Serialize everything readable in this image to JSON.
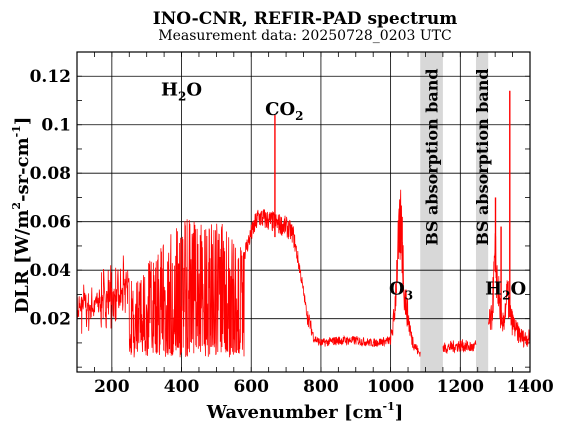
{
  "chart_data": {
    "type": "line",
    "title": "INO-CNR, REFIR-PAD spectrum",
    "subtitle": "Measurement data: 20250728_0203 UTC",
    "xlabel": {
      "main": "Wavenumber [cm",
      "sup": "-1",
      "tail": "]"
    },
    "ylabel": {
      "a": "DLR [W/m",
      "sup1": "2",
      "b": "-sr-cm",
      "sup2": "-1",
      "c": "]"
    },
    "xlim": [
      100,
      1400
    ],
    "ylim": [
      -0.002,
      0.13
    ],
    "x_ticks": [
      200,
      400,
      600,
      800,
      1000,
      1200,
      1400
    ],
    "y_ticks": [
      0.02,
      0.04,
      0.06,
      0.08,
      0.1,
      0.12
    ],
    "y_tick_labels": [
      "0.02",
      "0.04",
      "0.06",
      "0.08",
      "0.1",
      "0.12"
    ],
    "grid": true,
    "series": [
      {
        "color": "#ff0000",
        "points": [
          [
            100,
            0.022
          ],
          [
            120,
            0.026
          ],
          [
            140,
            0.024
          ],
          [
            160,
            0.027
          ],
          [
            180,
            0.029
          ],
          [
            200,
            0.03
          ],
          [
            220,
            0.028
          ],
          [
            240,
            0.034
          ],
          [
            260,
            0.036
          ],
          [
            280,
            0.04
          ],
          [
            300,
            0.043
          ],
          [
            320,
            0.046
          ],
          [
            340,
            0.049
          ],
          [
            360,
            0.054
          ],
          [
            380,
            0.057
          ],
          [
            400,
            0.06
          ],
          [
            420,
            0.062
          ],
          [
            440,
            0.062
          ],
          [
            460,
            0.061
          ],
          [
            480,
            0.06
          ],
          [
            500,
            0.06
          ],
          [
            520,
            0.059
          ],
          [
            540,
            0.056
          ],
          [
            560,
            0.052
          ],
          [
            580,
            0.047
          ],
          [
            600,
            0.055
          ],
          [
            620,
            0.062
          ],
          [
            640,
            0.061
          ],
          [
            660,
            0.06
          ],
          [
            680,
            0.059
          ],
          [
            700,
            0.058
          ],
          [
            720,
            0.055
          ],
          [
            740,
            0.04
          ],
          [
            760,
            0.022
          ],
          [
            780,
            0.012
          ],
          [
            800,
            0.01
          ],
          [
            850,
            0.011
          ],
          [
            900,
            0.011
          ],
          [
            950,
            0.01
          ],
          [
            1000,
            0.011
          ],
          [
            1010,
            0.02
          ],
          [
            1020,
            0.045
          ],
          [
            1030,
            0.06
          ],
          [
            1040,
            0.03
          ],
          [
            1060,
            0.012
          ],
          [
            1080,
            0.006
          ],
          [
            1160,
            0.008
          ],
          [
            1200,
            0.009
          ],
          [
            1240,
            0.008
          ],
          [
            1290,
            0.02
          ],
          [
            1300,
            0.045
          ],
          [
            1310,
            0.03
          ],
          [
            1320,
            0.015
          ],
          [
            1335,
            0.03
          ],
          [
            1345,
            0.02
          ],
          [
            1360,
            0.015
          ],
          [
            1380,
            0.012
          ],
          [
            1400,
            0.012
          ]
        ],
        "spikes": [
          [
            668,
            0.104
          ],
          [
            1342,
            0.114
          ],
          [
            1301,
            0.07
          ],
          [
            1317,
            0.058
          ],
          [
            1025,
            0.064
          ],
          [
            1033,
            0.062
          ]
        ]
      }
    ],
    "shaded_bands": [
      {
        "x": [
          1085,
          1150
        ],
        "label": "BS absorption band"
      },
      {
        "x": [
          1245,
          1280
        ],
        "label": "BS absorption band"
      }
    ],
    "annotations": [
      {
        "text": "H",
        "sub": "2",
        "tail": "O",
        "x": 400,
        "y": 0.112
      },
      {
        "text": "CO",
        "sub": "2",
        "tail": "",
        "x": 695,
        "y": 0.104
      },
      {
        "text": "O",
        "sub": "3",
        "tail": "",
        "x": 1030,
        "y": 0.03
      },
      {
        "text": "H",
        "sub": "2",
        "tail": "O",
        "x": 1330,
        "y": 0.03
      }
    ]
  }
}
